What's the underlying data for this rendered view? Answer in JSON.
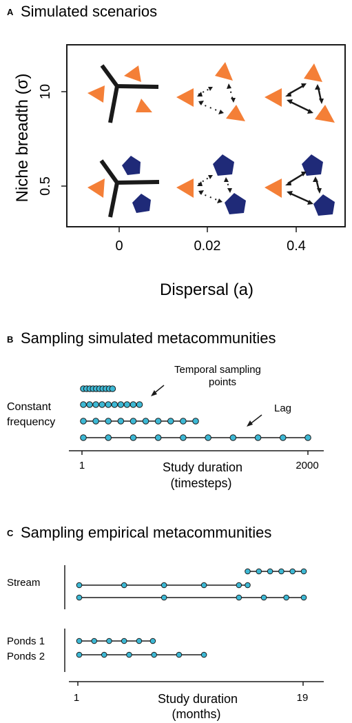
{
  "panel_a": {
    "letter": "A",
    "title": "Simulated scenarios",
    "y_axis_label": "Niche breadth (σ)",
    "x_axis_label": "Dispersal (a)",
    "y_ticks": [
      "10",
      "0.5"
    ],
    "x_ticks": [
      "0",
      "0.02",
      "0.4"
    ],
    "colors": {
      "orange": "#F47F37",
      "navy": "#1F2A78",
      "black": "#1a1a1a"
    }
  },
  "panel_b": {
    "letter": "B",
    "title": "Sampling simulated metacommunities",
    "annotation_temporal": [
      "Temporal sampling",
      "points"
    ],
    "annotation_lag": "Lag",
    "row_label": [
      "Constant",
      "frequency"
    ],
    "x_tick_min": "1",
    "x_tick_max": "2000",
    "x_label": [
      "Study duration",
      "(timesteps)"
    ],
    "point_color": "#3DB8D4",
    "rows": [
      {
        "points": 10,
        "end_fraction": 0.13
      },
      {
        "points": 10,
        "end_fraction": 0.25
      },
      {
        "points": 10,
        "end_fraction": 0.5
      },
      {
        "points": 10,
        "end_fraction": 1.0
      }
    ]
  },
  "panel_c": {
    "letter": "C",
    "title": "Sampling empirical metacommunities",
    "group_stream": "Stream",
    "group_ponds": [
      "Ponds 1",
      "Ponds 2"
    ],
    "x_tick_min": "1",
    "x_tick_max": "19",
    "x_label": [
      "Study duration",
      "(months)"
    ],
    "stream_rows": [
      [
        14.5,
        15.4,
        16.3,
        17.2,
        18.1,
        19
      ],
      [
        1,
        4.6,
        7.8,
        11,
        13.8,
        14.5
      ],
      [
        1,
        7.8,
        13.8,
        15.8,
        17.6,
        19
      ]
    ],
    "pond_rows": [
      [
        1,
        2.2,
        3.4,
        4.6,
        5.8,
        6.9
      ],
      [
        1,
        3,
        5,
        7,
        9,
        11
      ]
    ]
  }
}
